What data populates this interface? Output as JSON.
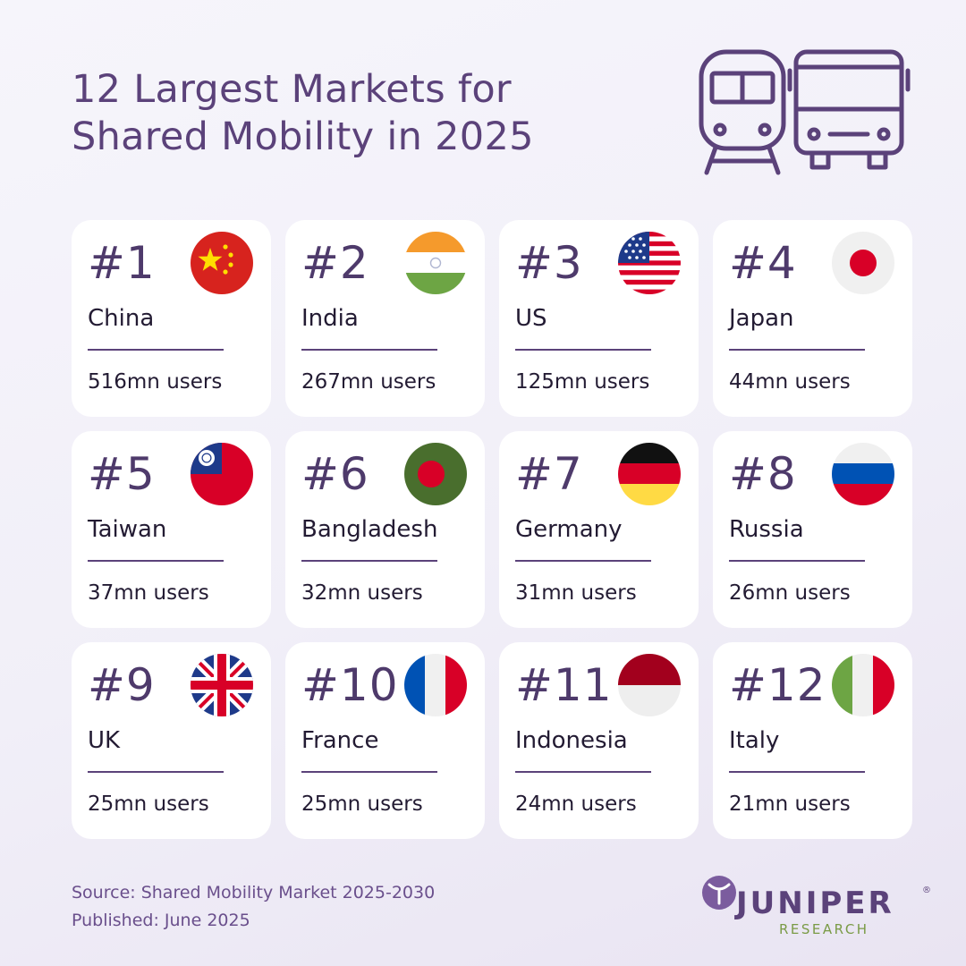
{
  "header": {
    "title_line1": "12 Largest Markets for",
    "title_line2": "Shared Mobility in 2025"
  },
  "markets": [
    {
      "rank": "#1",
      "country": "China",
      "users": "516mn users",
      "flag_icon": "china-flag-icon"
    },
    {
      "rank": "#2",
      "country": "India",
      "users": "267mn users",
      "flag_icon": "india-flag-icon"
    },
    {
      "rank": "#3",
      "country": "US",
      "users": "125mn users",
      "flag_icon": "us-flag-icon"
    },
    {
      "rank": "#4",
      "country": "Japan",
      "users": "44mn users",
      "flag_icon": "japan-flag-icon"
    },
    {
      "rank": "#5",
      "country": "Taiwan",
      "users": "37mn users",
      "flag_icon": "taiwan-flag-icon"
    },
    {
      "rank": "#6",
      "country": "Bangladesh",
      "users": "32mn users",
      "flag_icon": "bangladesh-flag-icon"
    },
    {
      "rank": "#7",
      "country": "Germany",
      "users": "31mn users",
      "flag_icon": "germany-flag-icon"
    },
    {
      "rank": "#8",
      "country": "Russia",
      "users": "26mn users",
      "flag_icon": "russia-flag-icon"
    },
    {
      "rank": "#9",
      "country": "UK",
      "users": "25mn users",
      "flag_icon": "uk-flag-icon"
    },
    {
      "rank": "#10",
      "country": "France",
      "users": "25mn users",
      "flag_icon": "france-flag-icon"
    },
    {
      "rank": "#11",
      "country": "Indonesia",
      "users": "24mn users",
      "flag_icon": "indonesia-flag-icon"
    },
    {
      "rank": "#12",
      "country": "Italy",
      "users": "21mn users",
      "flag_icon": "italy-flag-icon"
    }
  ],
  "footer": {
    "source": "Source: Shared Mobility Market 2025-2030",
    "published": "Published: June 2025"
  },
  "logo": {
    "name": "JUNIPER",
    "registered": "®",
    "subtitle": "RESEARCH"
  },
  "colors": {
    "accent_purple": "#5b427a",
    "logo_green": "#7a9b46",
    "card_bg": "#ffffff"
  }
}
